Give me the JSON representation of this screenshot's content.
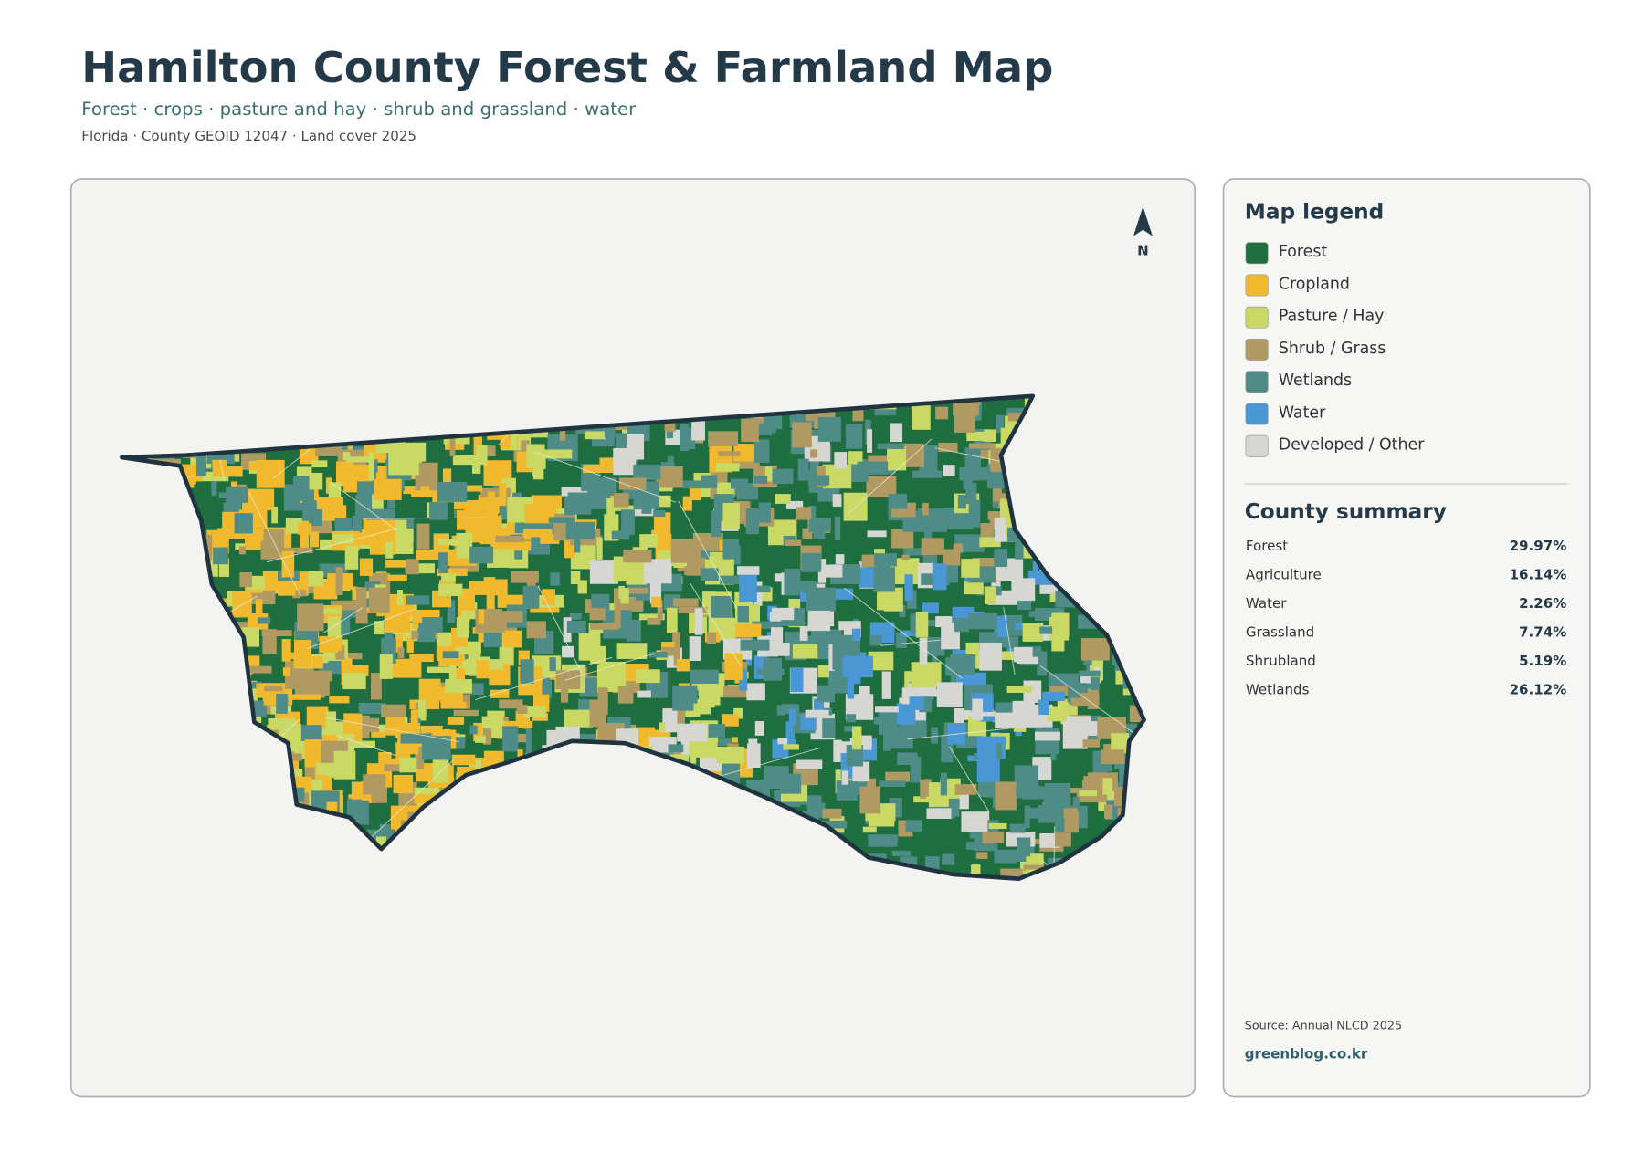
{
  "header": {
    "title": "Hamilton County Forest & Farmland Map",
    "subtitle": "Forest · crops · pasture and hay · shrub and grassland · water",
    "meta": "Florida · County GEOID 12047 · Land cover 2025"
  },
  "map": {
    "north": "N"
  },
  "legend": {
    "title": "Map legend",
    "items": [
      {
        "label": "Forest",
        "color": "#1f6e3f"
      },
      {
        "label": "Cropland",
        "color": "#f0b92e"
      },
      {
        "label": "Pasture / Hay",
        "color": "#c9d964"
      },
      {
        "label": "Shrub / Grass",
        "color": "#b09a62"
      },
      {
        "label": "Wetlands",
        "color": "#4f8c87"
      },
      {
        "label": "Water",
        "color": "#4a97d6"
      },
      {
        "label": "Developed / Other",
        "color": "#d6d6d3"
      }
    ]
  },
  "summary": {
    "title": "County summary",
    "rows": [
      [
        "Forest",
        "29.97%"
      ],
      [
        "Agriculture",
        "16.14%"
      ],
      [
        "Water",
        "2.26%"
      ],
      [
        "Grassland",
        "7.74%"
      ],
      [
        "Shrubland",
        "5.19%"
      ],
      [
        "Wetlands",
        "26.12%"
      ]
    ]
  },
  "footer": {
    "source": "Source: Annual NLCD 2025",
    "site": "greenblog.co.kr"
  }
}
